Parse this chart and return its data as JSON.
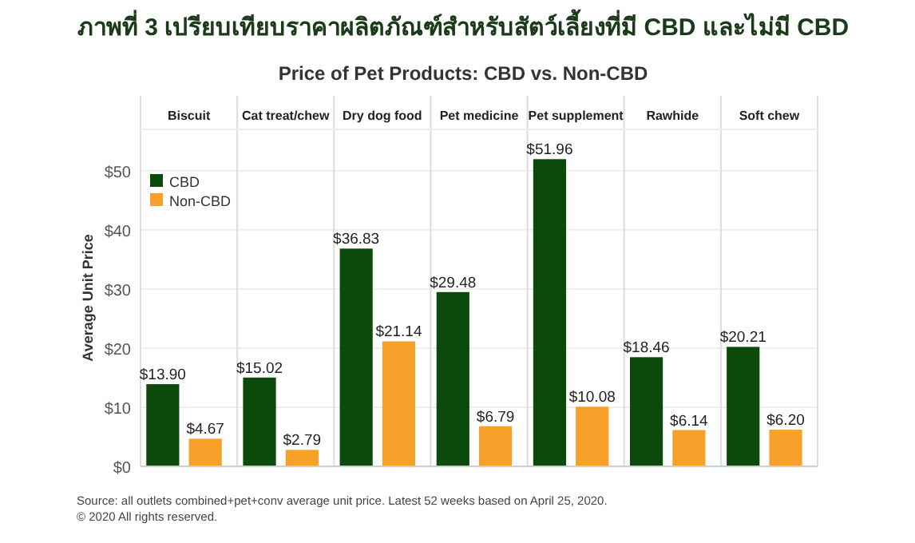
{
  "chart_data": {
    "type": "bar",
    "title": "ภาพที่ 3  เปรียบเทียบราคาผลิตภัณฑ์สำหรับสัตว์เลี้ยงที่มี CBD และไม่มี CBD",
    "subtitle": "Price of Pet Products: CBD vs. Non-CBD",
    "ylabel": "Average Unit Price",
    "categories": [
      "Biscuit",
      "Cat treat/chew",
      "Dry dog food",
      "Pet medicine",
      "Pet supplement",
      "Rawhide",
      "Soft chew"
    ],
    "series": [
      {
        "name": "CBD",
        "color": "#0b4a0b",
        "values": [
          13.9,
          15.02,
          36.83,
          29.48,
          51.96,
          18.46,
          20.21
        ],
        "value_labels": [
          "$13.90",
          "$15.02",
          "$36.83",
          "$29.48",
          "$51.96",
          "$18.46",
          "$20.21"
        ]
      },
      {
        "name": "Non-CBD",
        "color": "#f7a12a",
        "values": [
          4.67,
          2.79,
          21.14,
          6.79,
          10.08,
          6.14,
          6.2
        ],
        "value_labels": [
          "$4.67",
          "$2.79",
          "$21.14",
          "$6.79",
          "$10.08",
          "$6.14",
          "$6.20"
        ]
      }
    ],
    "ylim": [
      0,
      57
    ],
    "yticks": [
      {
        "value": 0,
        "label": "$0"
      },
      {
        "value": 10,
        "label": "$10"
      },
      {
        "value": 20,
        "label": "$20"
      },
      {
        "value": 30,
        "label": "$30"
      },
      {
        "value": 40,
        "label": "$40"
      },
      {
        "value": 50,
        "label": "$50"
      }
    ],
    "grid": "y",
    "legend": "top left",
    "annotations": [
      "Source: all outlets combined+pet+conv average unit price. Latest 52 weeks based on April 25, 2020.",
      "© 2020 All rights reserved."
    ]
  }
}
